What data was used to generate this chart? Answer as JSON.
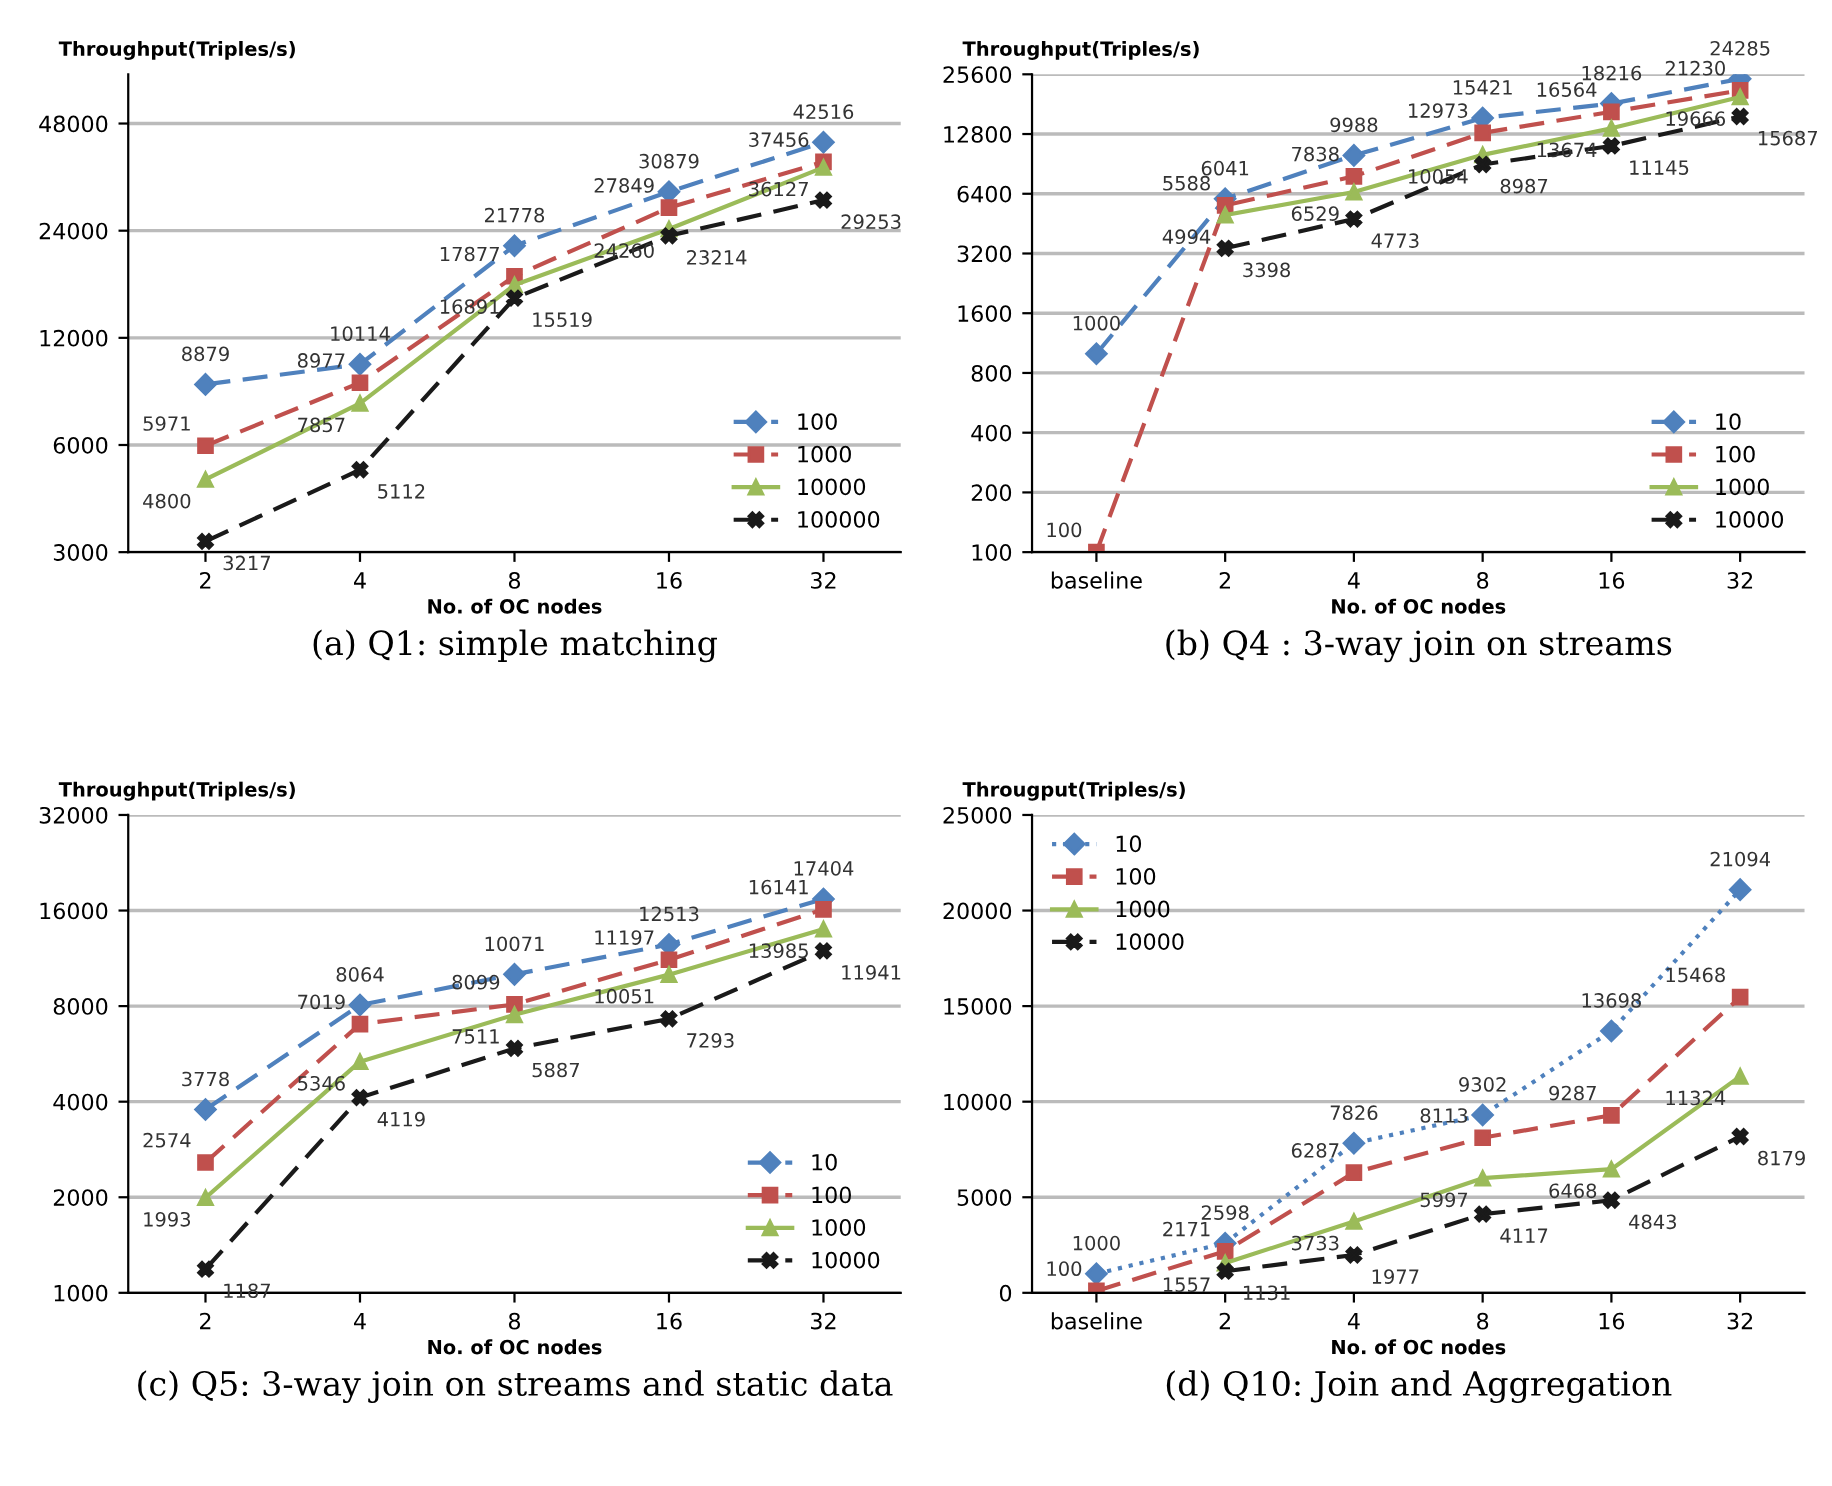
{
  "chart_data": [
    {
      "type": "line",
      "title": "(a) Q1: simple matching",
      "xlabel": "No. of OC nodes",
      "ylabel": "Throughput(Triples/s)",
      "categories": [
        "2",
        "4",
        "8",
        "16",
        "32"
      ],
      "log": true,
      "ylim": [
        3000,
        66000
      ],
      "yticks": [
        3000,
        6000,
        12000,
        24000,
        48000
      ],
      "grid": "y",
      "legend": "lower right",
      "data_labels": true,
      "series": [
        {
          "name": "100",
          "color": "#4f81bd",
          "marker": "diamond",
          "line_style": "dashed",
          "values": [
            8879,
            10114,
            21778,
            30879,
            42516
          ]
        },
        {
          "name": "1000",
          "color": "#c0504d",
          "marker": "square",
          "line_style": "dashed",
          "values": [
            5971,
            8977,
            17877,
            27849,
            37456
          ]
        },
        {
          "name": "10000",
          "color": "#9bbb59",
          "marker": "triangle",
          "line_style": "solid",
          "values": [
            4800,
            7857,
            16891,
            24260,
            36127
          ]
        },
        {
          "name": "100000",
          "color": "#1a1a1a",
          "marker": "cross",
          "line_style": "dashed",
          "values": [
            3217,
            5112,
            15519,
            23214,
            29253
          ]
        }
      ]
    },
    {
      "type": "line",
      "title": "(b) Q4 : 3-way join on streams",
      "xlabel": "No. of OC nodes",
      "ylabel": "Throughput(Triples/s)",
      "categories": [
        "baseline",
        "2",
        "4",
        "8",
        "16",
        "32"
      ],
      "log": true,
      "ylim": [
        100,
        25600
      ],
      "yticks": [
        100,
        200,
        400,
        800,
        1600,
        3200,
        6400,
        12800,
        25600
      ],
      "grid": "y",
      "legend": "lower right",
      "data_labels": true,
      "series": [
        {
          "name": "10",
          "color": "#4f81bd",
          "marker": "diamond",
          "line_style": "dashed",
          "values": [
            1000,
            6041,
            9988,
            15421,
            18216,
            24285
          ]
        },
        {
          "name": "100",
          "color": "#c0504d",
          "marker": "square",
          "line_style": "dashed",
          "values": [
            100,
            5588,
            7838,
            12973,
            16564,
            21230
          ]
        },
        {
          "name": "1000",
          "color": "#9bbb59",
          "marker": "triangle",
          "line_style": "solid",
          "values": [
            null,
            4994,
            6529,
            10054,
            13674,
            19666
          ]
        },
        {
          "name": "10000",
          "color": "#1a1a1a",
          "marker": "cross",
          "line_style": "dashed",
          "values": [
            null,
            3398,
            4773,
            8987,
            11145,
            15687
          ]
        }
      ]
    },
    {
      "type": "line",
      "title": "(c) Q5: 3-way join on streams and static data",
      "xlabel": "No. of OC nodes",
      "ylabel": "Throughput(Triples/s)",
      "categories": [
        "2",
        "4",
        "8",
        "16",
        "32"
      ],
      "log": true,
      "ylim": [
        1000,
        32000
      ],
      "yticks": [
        1000,
        2000,
        4000,
        8000,
        16000,
        32000
      ],
      "grid": "y",
      "legend": "lower right",
      "data_labels": true,
      "series": [
        {
          "name": "10",
          "color": "#4f81bd",
          "marker": "diamond",
          "line_style": "dashed",
          "values": [
            3778,
            8064,
            10071,
            12513,
            17404
          ]
        },
        {
          "name": "100",
          "color": "#c0504d",
          "marker": "square",
          "line_style": "dashed",
          "values": [
            2574,
            7019,
            8099,
            11197,
            16141
          ]
        },
        {
          "name": "1000",
          "color": "#9bbb59",
          "marker": "triangle",
          "line_style": "solid",
          "values": [
            1993,
            5346,
            7511,
            10051,
            13985
          ]
        },
        {
          "name": "10000",
          "color": "#1a1a1a",
          "marker": "cross",
          "line_style": "dashed",
          "values": [
            1187,
            4119,
            5887,
            7293,
            11941
          ]
        }
      ]
    },
    {
      "type": "line",
      "title": "(d) Q10: Join and Aggregation",
      "xlabel": "No. of OC nodes",
      "ylabel": "Througput(Triples/s)",
      "categories": [
        "baseline",
        "2",
        "4",
        "8",
        "16",
        "32"
      ],
      "ylim": [
        0,
        25000
      ],
      "yticks": [
        0,
        5000,
        10000,
        15000,
        20000,
        25000
      ],
      "grid": "y",
      "legend": "upper left",
      "data_labels": true,
      "series": [
        {
          "name": "10",
          "color": "#4f81bd",
          "marker": "diamond",
          "line_style": "dotted",
          "values": [
            1000,
            2598,
            7826,
            9302,
            13698,
            21094
          ]
        },
        {
          "name": "100",
          "color": "#c0504d",
          "marker": "square",
          "line_style": "dashed",
          "values": [
            100,
            2171,
            6287,
            8113,
            9287,
            15468
          ]
        },
        {
          "name": "1000",
          "color": "#9bbb59",
          "marker": "triangle",
          "line_style": "solid",
          "values": [
            null,
            1557,
            3733,
            5997,
            6468,
            11324
          ]
        },
        {
          "name": "10000",
          "color": "#1a1a1a",
          "marker": "cross",
          "line_style": "dashed",
          "values": [
            null,
            1131,
            1977,
            4117,
            4843,
            8179
          ]
        }
      ]
    }
  ]
}
